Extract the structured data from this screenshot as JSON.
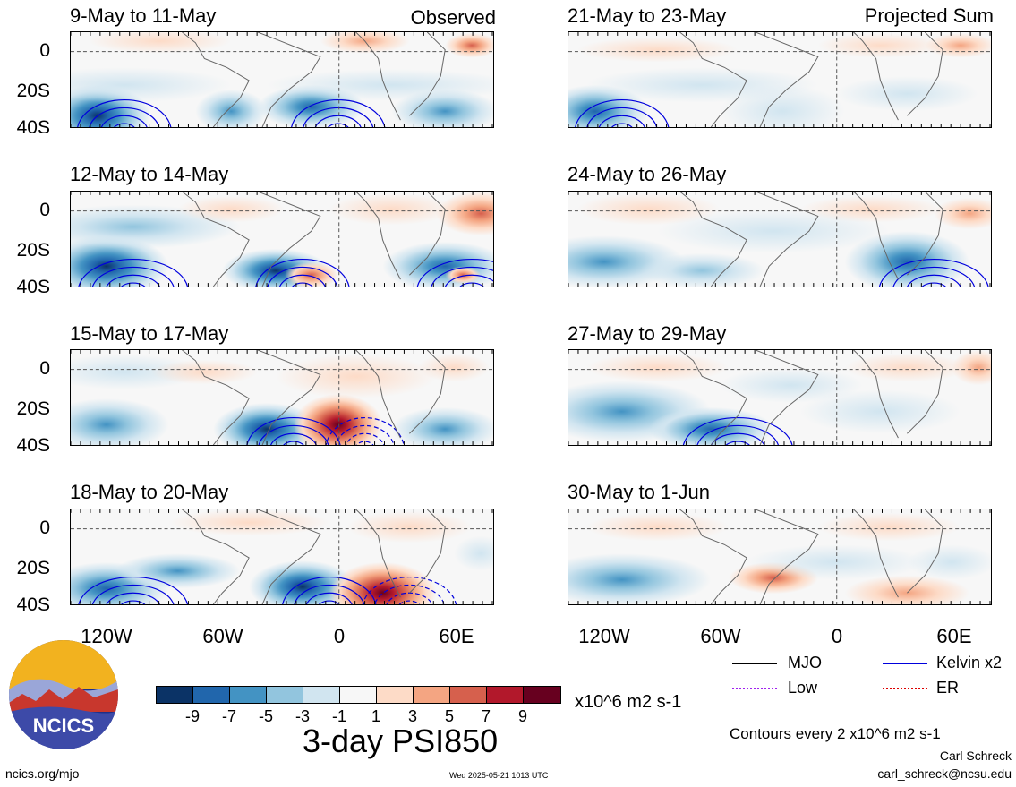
{
  "panels": [
    {
      "title": "9-May to 11-May",
      "tag": "Observed",
      "col": 0,
      "row": 0
    },
    {
      "title": "12-May to 14-May",
      "tag": "",
      "col": 0,
      "row": 1
    },
    {
      "title": "15-May to 17-May",
      "tag": "",
      "col": 0,
      "row": 2
    },
    {
      "title": "18-May to 20-May",
      "tag": "",
      "col": 0,
      "row": 3
    },
    {
      "title": "21-May to 23-May",
      "tag": "Projected Sum",
      "col": 1,
      "row": 0
    },
    {
      "title": "24-May to 26-May",
      "tag": "",
      "col": 1,
      "row": 1
    },
    {
      "title": "27-May to 29-May",
      "tag": "",
      "col": 1,
      "row": 2
    },
    {
      "title": "30-May to 1-Jun",
      "tag": "",
      "col": 1,
      "row": 3
    }
  ],
  "y_ticks": [
    "0",
    "20S",
    "40S"
  ],
  "x_ticks": [
    "120W",
    "60W",
    "0",
    "60E"
  ],
  "colorbar": {
    "colors": [
      "#0b3366",
      "#2166ac",
      "#4393c3",
      "#92c5de",
      "#d1e5f0",
      "#f7f7f7",
      "#fddbc7",
      "#f4a582",
      "#d6604d",
      "#b2182b",
      "#67001f"
    ],
    "labels": [
      "-9",
      "-7",
      "-5",
      "-3",
      "-1",
      "1",
      "3",
      "5",
      "7",
      "9"
    ],
    "unit": "x10^6 m2 s-1"
  },
  "legend": [
    {
      "label": "MJO",
      "color": "#000000"
    },
    {
      "label": "Kelvin x2",
      "color": "#0000dd"
    },
    {
      "label": "Low",
      "color": "#a020f0"
    },
    {
      "label": "ER",
      "color": "#dd0000"
    }
  ],
  "main_title": "3-day PSI850",
  "contours_note": "Contours every 2 x10^6 m2 s-1",
  "author": "Carl Schreck",
  "email": "carl_schreck@ncsu.edu",
  "site": "ncics.org/mjo",
  "timestamp": "Wed 2025-05-21 1013 UTC",
  "logo_text": "NCICS"
}
